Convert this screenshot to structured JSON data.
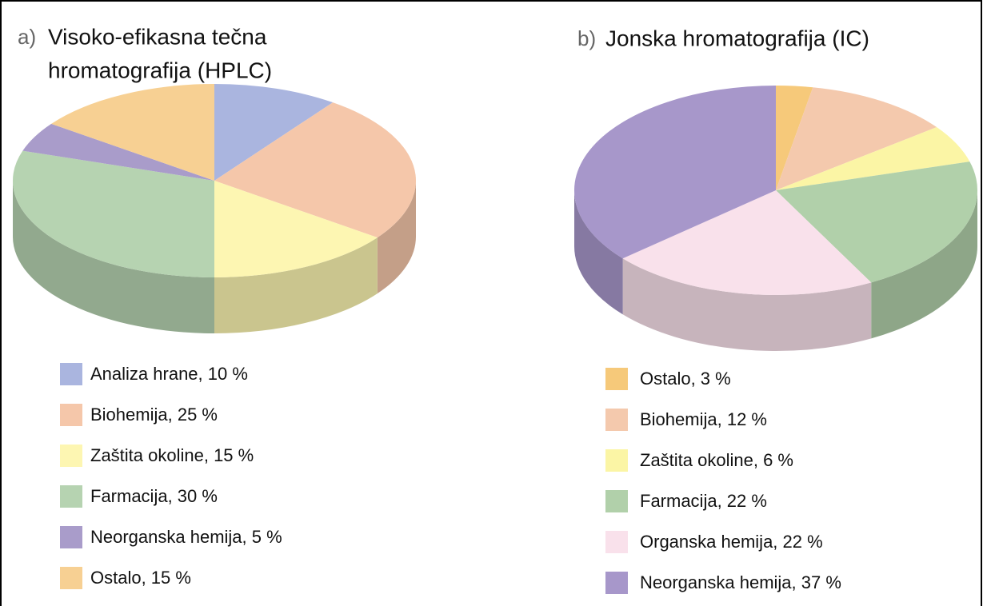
{
  "chart_data": [
    {
      "type": "pie",
      "panel_label": "a)",
      "title": [
        "Visoko-efikasna tečna",
        "hromatografija (HPLC)"
      ],
      "categories": [
        "Analiza hrane, 10 %",
        "Biohemija, 25 %",
        "Zaštita okoline, 15 %",
        "Farmacija, 30 %",
        "Neorganska hemija, 5 %",
        "Ostalo, 15 %"
      ],
      "values": [
        10,
        25,
        15,
        30,
        5,
        15
      ],
      "colors": [
        "#aab5df",
        "#f5c7aa",
        "#fdf6b2",
        "#b6d3b1",
        "#a99cca",
        "#f7d093"
      ]
    },
    {
      "type": "pie",
      "panel_label": "b)",
      "title": [
        "Jonska hromatografija (IC)"
      ],
      "categories": [
        "Ostalo, 3 %",
        "Biohemija, 12 %",
        "Zaštita okoline, 6 %",
        "Farmacija, 22 %",
        "Organska hemija, 22 %",
        "Neorganska hemija, 37 %"
      ],
      "values": [
        3,
        12,
        6,
        22,
        22,
        37
      ],
      "colors": [
        "#f6c97a",
        "#f4c9ad",
        "#fbf5a5",
        "#b1d0aa",
        "#f9e1eb",
        "#a797ca"
      ]
    }
  ]
}
